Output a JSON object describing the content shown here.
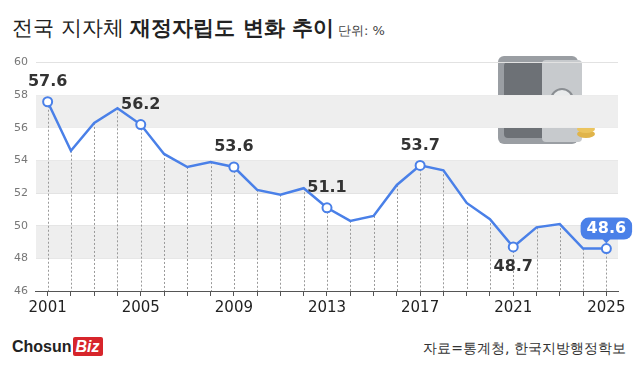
{
  "chart_data": {
    "type": "line",
    "title": "전국 지자체 재정자립도 변화 추이",
    "subtitle": "단위: %",
    "source": "자료=통계청, 한국지방행정학보",
    "logo": {
      "text": "Chosun",
      "badge": "Biz"
    },
    "categories": [
      "2001",
      null,
      null,
      null,
      "2005",
      null,
      null,
      null,
      "2009",
      null,
      null,
      null,
      "2013",
      null,
      null,
      null,
      "2017",
      null,
      null,
      null,
      "2021",
      null,
      null,
      null,
      "2025"
    ],
    "values": [
      57.6,
      54.6,
      56.3,
      57.2,
      56.2,
      54.4,
      53.6,
      53.9,
      53.6,
      52.2,
      51.9,
      52.3,
      51.1,
      50.3,
      50.6,
      52.5,
      53.7,
      53.4,
      51.4,
      50.4,
      48.7,
      49.9,
      50.1,
      48.6,
      48.6
    ],
    "value_labels": [
      "57.6",
      null,
      null,
      null,
      "56.2",
      null,
      null,
      null,
      "53.6",
      null,
      null,
      null,
      "51.1",
      null,
      null,
      null,
      "53.7",
      null,
      null,
      null,
      "48.7",
      null,
      null,
      null,
      "48.6"
    ],
    "color": "#4a80e8",
    "marker": "circle",
    "ylim": [
      46,
      60
    ],
    "yticks": [
      46,
      48,
      50,
      52,
      54,
      56,
      58,
      60
    ],
    "grid": true
  }
}
